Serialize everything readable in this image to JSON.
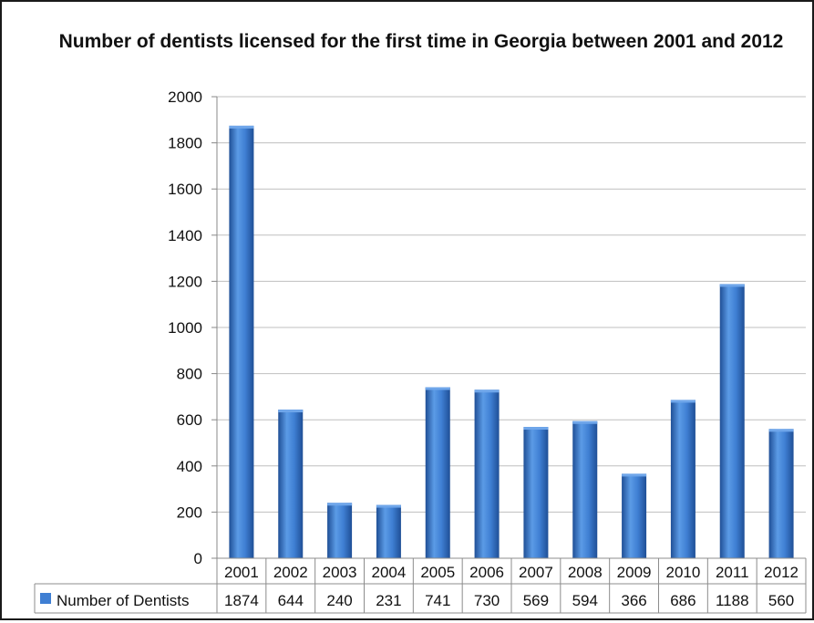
{
  "chart_data": {
    "type": "bar",
    "title": "Number of dentists licensed for the first time in Georgia between 2001 and 2012",
    "categories": [
      "2001",
      "2002",
      "2003",
      "2004",
      "2005",
      "2006",
      "2007",
      "2008",
      "2009",
      "2010",
      "2011",
      "2012"
    ],
    "series": [
      {
        "name": "Number of Dentists",
        "values": [
          1874,
          644,
          240,
          231,
          741,
          730,
          569,
          594,
          366,
          686,
          1188,
          560
        ]
      }
    ],
    "ylim": [
      0,
      2000
    ],
    "yticks": [
      "0",
      "200",
      "400",
      "600",
      "800",
      "1000",
      "1200",
      "1400",
      "1600",
      "1800",
      "2000"
    ],
    "grid": true,
    "legend": "data-table",
    "colors": {
      "bar": "#3f7fd3",
      "bar_dark": "#1f4f96",
      "bar_light": "#6fa6ea",
      "grid": "#bfbfbf"
    }
  }
}
